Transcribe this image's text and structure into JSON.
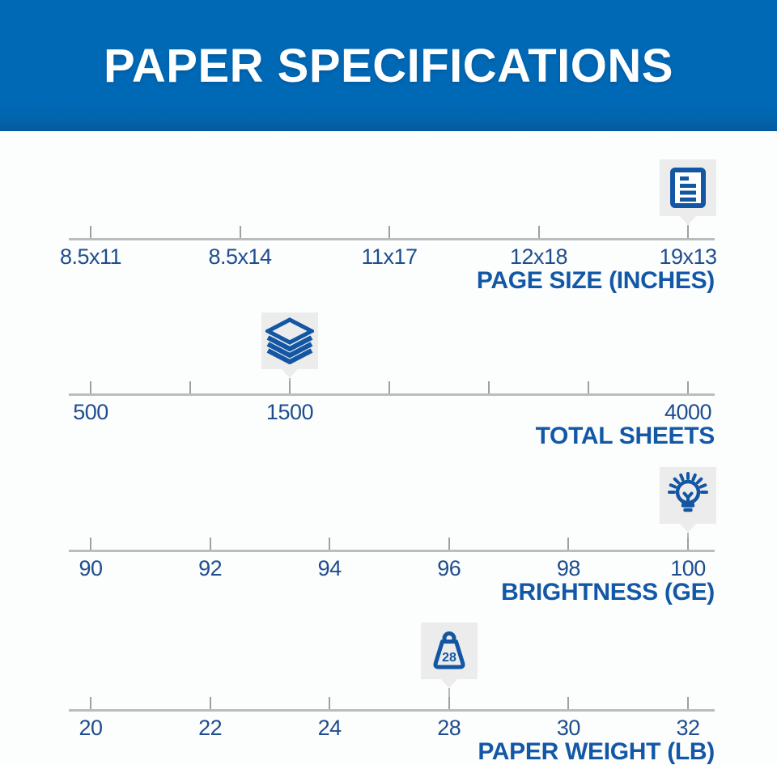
{
  "title": "PAPER SPECIFICATIONS",
  "colors": {
    "banner_blue": "#0069b6",
    "title_text": "#ffffff",
    "icon_blue": "#1356a3",
    "tick_label_navy": "#1f4d8e",
    "axis_label_blue": "#1358a6",
    "track_gray": "#b9bdbf",
    "tick_gray": "#9ca1a3",
    "marker_box_gray": "#ececec",
    "page_bg": "#fcfdfd"
  },
  "scales": [
    {
      "id": "page-size",
      "axis_label": "PAGE SIZE (INCHES)",
      "icon": "document-icon",
      "marker_value": "19x13",
      "ticks": [
        {
          "f": 0,
          "label": "8.5x11"
        },
        {
          "f": 0.25,
          "label": "8.5x14"
        },
        {
          "f": 0.5,
          "label": "11x17"
        },
        {
          "f": 0.75,
          "label": "12x18"
        },
        {
          "f": 1,
          "label": "19x13"
        }
      ]
    },
    {
      "id": "total-sheets",
      "axis_label": "TOTAL SHEETS",
      "icon": "paper-stack-icon",
      "marker_value": "1500",
      "ticks": [
        {
          "f": 0,
          "label": "500"
        },
        {
          "f": 0.1667,
          "label": ""
        },
        {
          "f": 0.3333,
          "label": "1500"
        },
        {
          "f": 0.5,
          "label": ""
        },
        {
          "f": 0.6667,
          "label": ""
        },
        {
          "f": 0.8333,
          "label": ""
        },
        {
          "f": 1,
          "label": "4000"
        }
      ]
    },
    {
      "id": "brightness",
      "axis_label": "BRIGHTNESS (GE)",
      "icon": "lightbulb-icon",
      "marker_value": "100",
      "ticks": [
        {
          "f": 0,
          "label": "90"
        },
        {
          "f": 0.2,
          "label": "92"
        },
        {
          "f": 0.4,
          "label": "94"
        },
        {
          "f": 0.6,
          "label": "96"
        },
        {
          "f": 0.8,
          "label": "98"
        },
        {
          "f": 1,
          "label": "100"
        }
      ]
    },
    {
      "id": "paper-weight",
      "axis_label": "PAPER WEIGHT (LB)",
      "icon": "weight-icon",
      "marker_value": "28",
      "ticks": [
        {
          "f": 0,
          "label": "20"
        },
        {
          "f": 0.2,
          "label": "22"
        },
        {
          "f": 0.4,
          "label": "24"
        },
        {
          "f": 0.6,
          "label": "28"
        },
        {
          "f": 0.8,
          "label": "30"
        },
        {
          "f": 1,
          "label": "32"
        }
      ]
    }
  ]
}
